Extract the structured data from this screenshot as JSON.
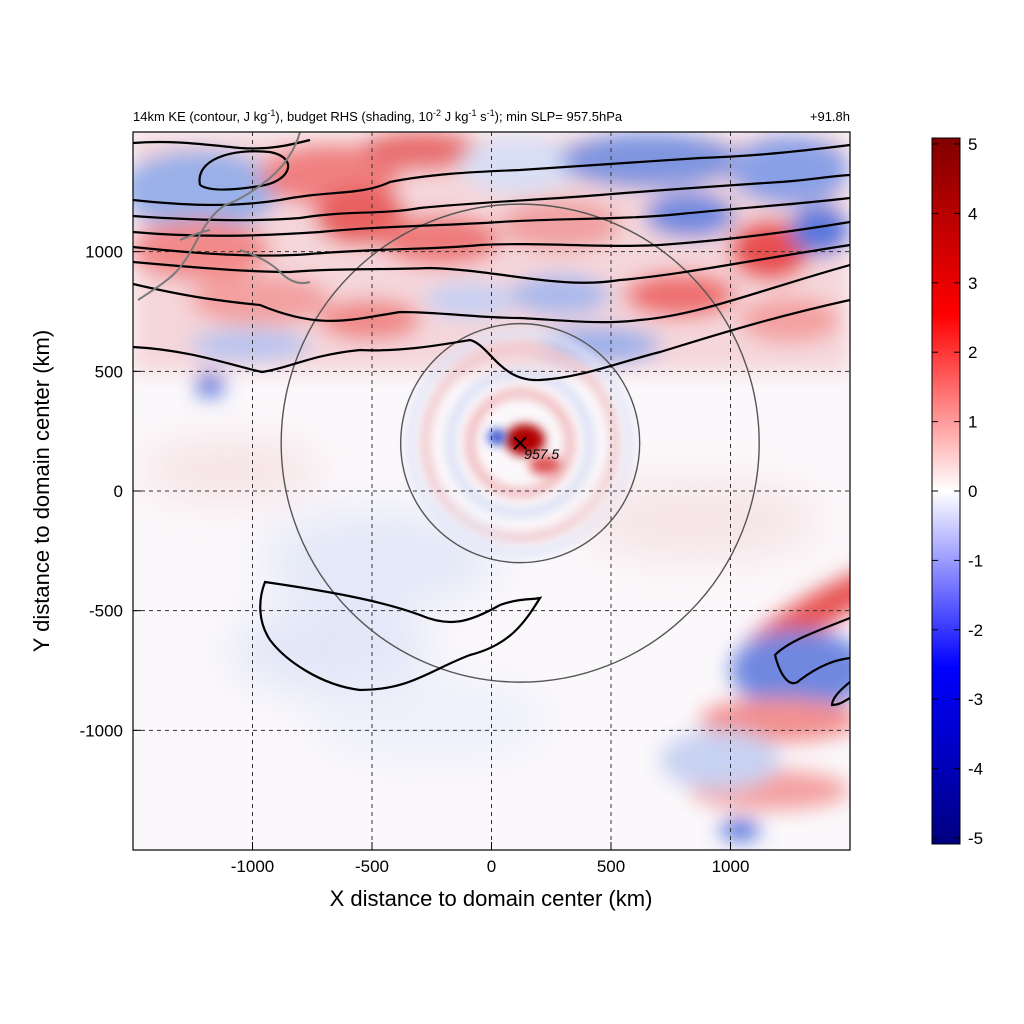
{
  "chart_data": {
    "type": "heatmap",
    "title_left": "14km KE (contour, J kg^-1), budget RHS (shading, 10^-2 J kg^-1 s^-1); min SLP= 957.5hPa",
    "title_right": "+91.8h",
    "xlabel": "X distance to domain center (km)",
    "ylabel": "Y distance to domain center (km)",
    "xlim": [
      -1500,
      1500
    ],
    "ylim": [
      -1500,
      1500
    ],
    "xticks": [
      -1000,
      -500,
      0,
      500,
      1000
    ],
    "yticks": [
      -1000,
      -500,
      0,
      500,
      1000
    ],
    "grid": "dashed at ticks",
    "colorbar": {
      "min": -5,
      "max": 5,
      "ticks": [
        5,
        4,
        3,
        2,
        1,
        0,
        -1,
        -2,
        -3,
        -4,
        -5
      ],
      "colors": [
        "#000080",
        "#0000ff",
        "#ffffff",
        "#ff0000",
        "#800000"
      ]
    },
    "storm_center": {
      "x": 120,
      "y": 200,
      "label": "957.5"
    },
    "range_circles": [
      {
        "center_x": 120,
        "center_y": 200,
        "radius": 500
      },
      {
        "center_x": 120,
        "center_y": 200,
        "radius": 1000
      }
    ],
    "shading_features": [
      {
        "name": "jet-band-north",
        "x_range": [
          -1500,
          1500
        ],
        "y_range": [
          550,
          1500
        ],
        "value_range": [
          -3,
          4
        ]
      },
      {
        "name": "storm-core-positive",
        "x": 140,
        "y": 220,
        "value": 5
      },
      {
        "name": "storm-core-negative",
        "x": 30,
        "y": 240,
        "value": -3
      },
      {
        "name": "southeast-band",
        "x_range": [
          600,
          1500
        ],
        "y_range": [
          -1500,
          -500
        ],
        "value_range": [
          -4,
          3
        ]
      }
    ]
  }
}
